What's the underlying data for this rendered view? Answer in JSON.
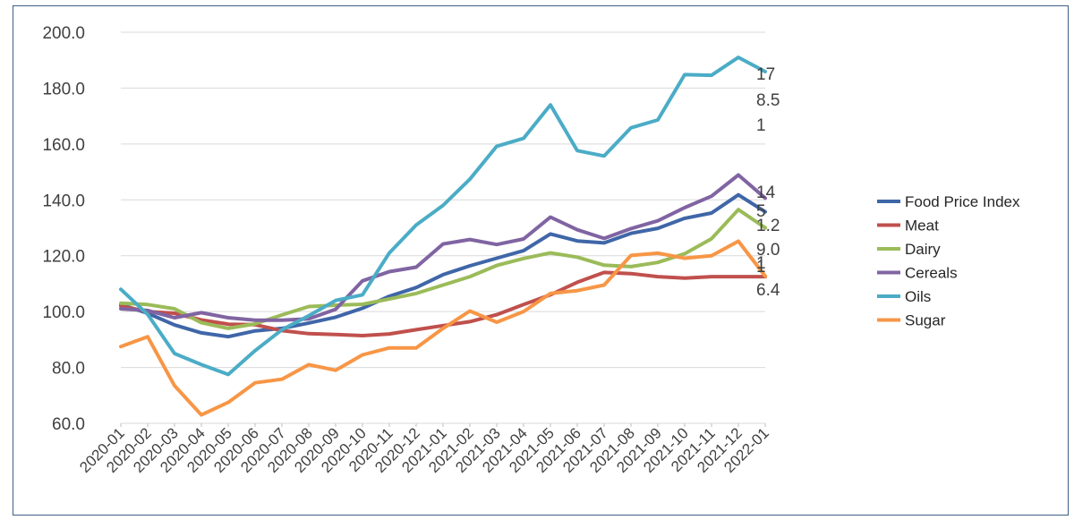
{
  "header": {
    "title_fragment": ""
  },
  "chart_data": {
    "type": "line",
    "title": "",
    "xlabel": "",
    "ylabel": "",
    "ylim": [
      60,
      200
    ],
    "yticks": [
      "60.0",
      "80.0",
      "100.0",
      "120.0",
      "140.0",
      "160.0",
      "180.0",
      "200.0"
    ],
    "grid": "horizontal",
    "legend_position": "right",
    "categories": [
      "2020-01",
      "2020-02",
      "2020-03",
      "2020-04",
      "2020-05",
      "2020-06",
      "2020-07",
      "2020-08",
      "2020-09",
      "2020-10",
      "2020-11",
      "2020-12",
      "2021-01",
      "2021-02",
      "2021-03",
      "2021-04",
      "2021-05",
      "2021-06",
      "2021-07",
      "2021-08",
      "2021-09",
      "2021-10",
      "2021-11",
      "2021-12",
      "2022-01"
    ],
    "series": [
      {
        "name": "Food Price Index",
        "color": "#3f66a8",
        "values": [
          102.5,
          99.4,
          95.2,
          92.4,
          91.0,
          93.1,
          94.0,
          95.9,
          98.0,
          101.2,
          105.5,
          108.6,
          113.2,
          116.4,
          119.1,
          121.8,
          127.8,
          125.3,
          124.6,
          128.0,
          129.8,
          133.4,
          135.3,
          141.8,
          135.7
        ],
        "end_label": "5"
      },
      {
        "name": "Meat",
        "color": "#c0504d",
        "values": [
          102.0,
          100.0,
          99.4,
          97.0,
          95.5,
          95.3,
          93.2,
          92.1,
          91.8,
          91.4,
          92.0,
          93.5,
          95.0,
          96.4,
          98.9,
          102.5,
          106.0,
          110.5,
          114.0,
          113.6,
          112.5,
          112.0,
          112.5,
          112.5,
          112.5
        ],
        "end_label": "1"
      },
      {
        "name": "Dairy",
        "color": "#9bbb59",
        "values": [
          103.0,
          102.5,
          101.0,
          96.0,
          94.0,
          95.6,
          98.8,
          101.8,
          102.3,
          102.6,
          104.5,
          106.5,
          109.5,
          112.5,
          116.5,
          119.0,
          121.0,
          119.5,
          116.6,
          116.1,
          117.6,
          120.7,
          126.1,
          136.5,
          130.0
        ],
        "end_label": "1.2"
      },
      {
        "name": "Cereals",
        "color": "#8064a2",
        "values": [
          101.0,
          100.4,
          97.8,
          99.6,
          97.8,
          96.9,
          96.9,
          97.4,
          100.8,
          111.0,
          114.3,
          115.9,
          124.2,
          125.8,
          124.0,
          126.0,
          133.8,
          129.3,
          126.2,
          129.7,
          132.5,
          137.2,
          141.3,
          148.9,
          140.6
        ],
        "end_label": "14"
      },
      {
        "name": "Oils",
        "color": "#4bacc6",
        "values": [
          108.0,
          99.0,
          85.0,
          81.0,
          77.5,
          86.0,
          93.5,
          98.5,
          104.0,
          106.0,
          121.0,
          131.0,
          138.0,
          147.4,
          159.2,
          162.0,
          174.0,
          157.6,
          155.7,
          165.8,
          168.6,
          184.8,
          184.6,
          191.0,
          185.9
        ],
        "end_label": "17"
      },
      {
        "name": "Sugar",
        "color": "#f79646",
        "values": [
          87.5,
          91.0,
          73.5,
          63.0,
          67.5,
          74.5,
          75.8,
          81.0,
          79.0,
          84.5,
          87.0,
          87.0,
          94.0,
          100.2,
          96.2,
          100.0,
          106.5,
          107.5,
          109.5,
          120.1,
          120.9,
          119.1,
          120.0,
          125.2,
          112.7
        ],
        "end_label": "6.4"
      }
    ],
    "extra_end_labels": [
      "8.5",
      "1",
      "9.0",
      "1"
    ]
  }
}
